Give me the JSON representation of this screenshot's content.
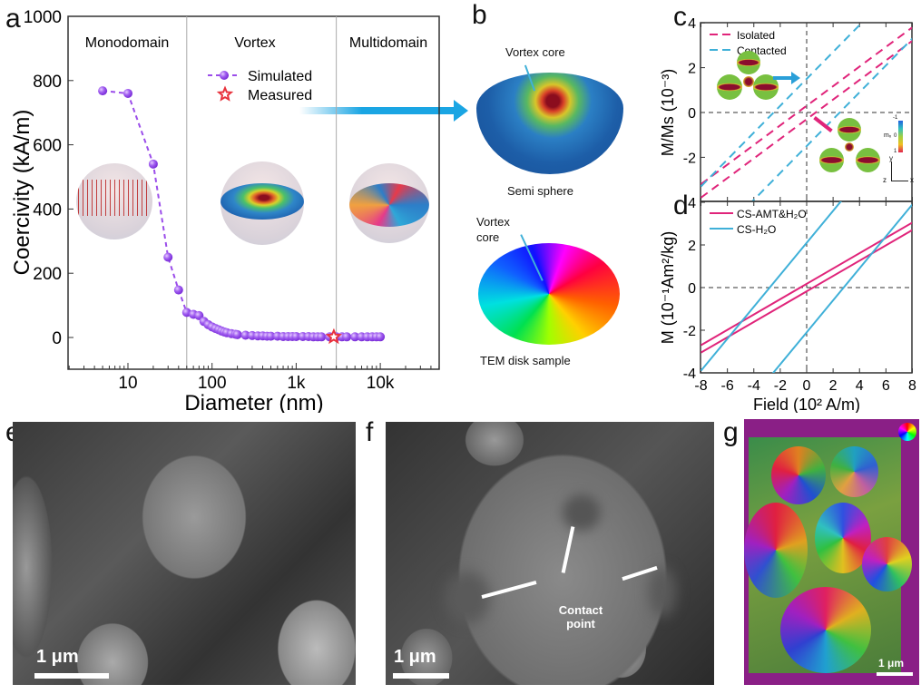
{
  "panel_labels": {
    "a": "a",
    "b": "b",
    "c": "c",
    "d": "d",
    "e": "e",
    "f": "f",
    "g": "g"
  },
  "panel_a": {
    "regions": [
      "Monodomain",
      "Vortex",
      "Multidomain"
    ],
    "legend": {
      "simulated": "Simulated",
      "measured": "Measured"
    }
  },
  "panel_b": {
    "vortex_core_top": "Vortex core",
    "semi_sphere": "Semi sphere",
    "vortex_core_line1": "Vortex",
    "vortex_core_line2": "core",
    "tem_disk": "TEM disk sample"
  },
  "panel_c_inset": {
    "colorbar_label": "mₓ",
    "colorbar_ticks": [
      "-1",
      "0",
      "1"
    ],
    "axis_y": "y",
    "axis_x": "x",
    "axis_z": "z"
  },
  "panel_e": {
    "scale": "1 μm"
  },
  "panel_f": {
    "scale": "1 μm",
    "contact_label_1": "Contact",
    "contact_label_2": "point"
  },
  "panel_g": {
    "scale": "1 μm"
  },
  "colors": {
    "simulated": "#9b4dea",
    "measured": "#e8323c",
    "isolated": "#e0247a",
    "contacted": "#3fb0d8",
    "cs_amt": "#e0247a",
    "cs_h2o": "#3fb0d8",
    "arrow": "#1aa5e3"
  },
  "chart_data": [
    {
      "id": "a",
      "type": "scatter",
      "xscale": "log",
      "xlabel": "Diameter (nm)",
      "ylabel": "Coercivity (kA/m)",
      "xlim": [
        2,
        50000
      ],
      "ylim": [
        -100,
        1000
      ],
      "xticks": [
        "10",
        "100",
        "1k",
        "10k"
      ],
      "xtick_values": [
        10,
        100,
        1000,
        10000
      ],
      "yticks": [
        "0",
        "200",
        "400",
        "600",
        "800",
        "1000"
      ],
      "ytick_values": [
        0,
        200,
        400,
        600,
        800,
        1000
      ],
      "region_boundaries": [
        50,
        3000
      ],
      "series": [
        {
          "name": "Simulated",
          "line": "dashed",
          "marker": "sphere",
          "x": [
            5,
            10,
            20,
            30,
            40,
            50,
            60,
            70,
            80,
            90,
            100,
            110,
            120,
            130,
            140,
            150,
            170,
            190,
            200,
            250,
            300,
            350,
            400,
            450,
            500,
            600,
            700,
            800,
            900,
            1000,
            1200,
            1400,
            1600,
            1800,
            2000,
            2500,
            3000,
            3500,
            4000,
            5000,
            6000,
            7000,
            8000,
            9000,
            10000
          ],
          "y": [
            768,
            760,
            540,
            250,
            148,
            78,
            72,
            68,
            50,
            40,
            33,
            28,
            24,
            20,
            17,
            15,
            12,
            10,
            9,
            7,
            6,
            5,
            5,
            4,
            4,
            4,
            3,
            3,
            3,
            3,
            3,
            3,
            2,
            2,
            2,
            2,
            2,
            2,
            2,
            2,
            2,
            2,
            2,
            2,
            2
          ]
        },
        {
          "name": "Measured",
          "marker": "star",
          "x": [
            2800
          ],
          "y": [
            2
          ]
        }
      ]
    },
    {
      "id": "c",
      "type": "line",
      "ylabel": "M/Ms (10⁻³)",
      "xlim": [
        -8,
        8
      ],
      "ylim": [
        -4,
        4
      ],
      "yticks": [
        "4",
        "2",
        "0",
        "-2"
      ],
      "ytick_values": [
        4,
        2,
        0,
        -2
      ],
      "series": [
        {
          "name": "Isolated",
          "line": "dashed",
          "branches": [
            {
              "x": [
                -8,
                8
              ],
              "y": [
                -3.2,
                3.8
              ]
            },
            {
              "x": [
                -8,
                8
              ],
              "y": [
                -3.8,
                3.2
              ]
            }
          ]
        },
        {
          "name": "Contacted",
          "line": "dashed",
          "branches": [
            {
              "x": [
                -8,
                8
              ],
              "y": [
                -3.3,
                6.3
              ]
            },
            {
              "x": [
                -8,
                8
              ],
              "y": [
                -6.3,
                3.3
              ]
            }
          ]
        }
      ]
    },
    {
      "id": "d",
      "type": "line",
      "xlabel": "Field (10² A/m)",
      "ylabel": "M (10⁻¹Am²/kg)",
      "xlim": [
        -8,
        8
      ],
      "ylim": [
        -4,
        4
      ],
      "xticks": [
        "-8",
        "-6",
        "-4",
        "-2",
        "0",
        "2",
        "4",
        "6",
        "8"
      ],
      "xtick_values": [
        -8,
        -6,
        -4,
        -2,
        0,
        2,
        4,
        6,
        8
      ],
      "yticks": [
        "4",
        "2",
        "0",
        "-2",
        "-4"
      ],
      "ytick_values": [
        4,
        2,
        0,
        -2,
        -4
      ],
      "series": [
        {
          "name": "CS-AMT&H₂O",
          "line": "solid",
          "branches": [
            {
              "x": [
                -8,
                8
              ],
              "y": [
                -2.7,
                3.05
              ]
            },
            {
              "x": [
                -8,
                8
              ],
              "y": [
                -3.05,
                2.7
              ]
            }
          ]
        },
        {
          "name": "CS-H₂O",
          "line": "solid",
          "branches": [
            {
              "x": [
                -8,
                8
              ],
              "y": [
                -3.9,
                8.1
              ]
            },
            {
              "x": [
                -8,
                8
              ],
              "y": [
                -8.1,
                3.9
              ]
            }
          ]
        }
      ]
    }
  ]
}
